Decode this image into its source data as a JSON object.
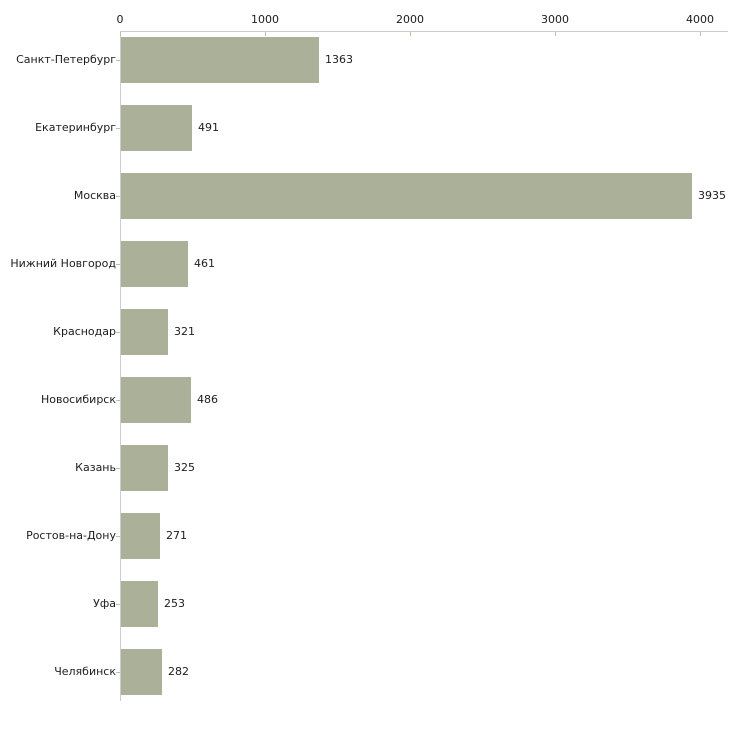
{
  "chart_data": {
    "type": "bar",
    "orientation": "horizontal",
    "title": "",
    "xlabel": "",
    "ylabel": "",
    "categories": [
      "Санкт-Петербург",
      "Екатеринбург",
      "Москва",
      "Нижний Новгород",
      "Краснодар",
      "Новосибирск",
      "Казань",
      "Ростов-на-Дону",
      "Уфа",
      "Челябинск"
    ],
    "values": [
      1363,
      491,
      3935,
      461,
      321,
      486,
      325,
      271,
      253,
      282
    ],
    "value_labels": [
      "1363",
      "491",
      "3935",
      "461",
      "321",
      "486",
      "325",
      "271",
      "253",
      "282"
    ],
    "x_ticks": [
      0,
      1000,
      2000,
      3000,
      4000
    ],
    "x_tick_labels": [
      "0",
      "1000",
      "2000",
      "3000",
      "4000"
    ],
    "xlim": [
      0,
      4000
    ],
    "axis_position": "top",
    "grid": false,
    "legend": false,
    "bar_color": "#abb098",
    "tick_color": "#bcc29e",
    "axis_line_color": "#cccccc",
    "text_color": "#1c1c1c",
    "background_color": "#ffffff"
  }
}
